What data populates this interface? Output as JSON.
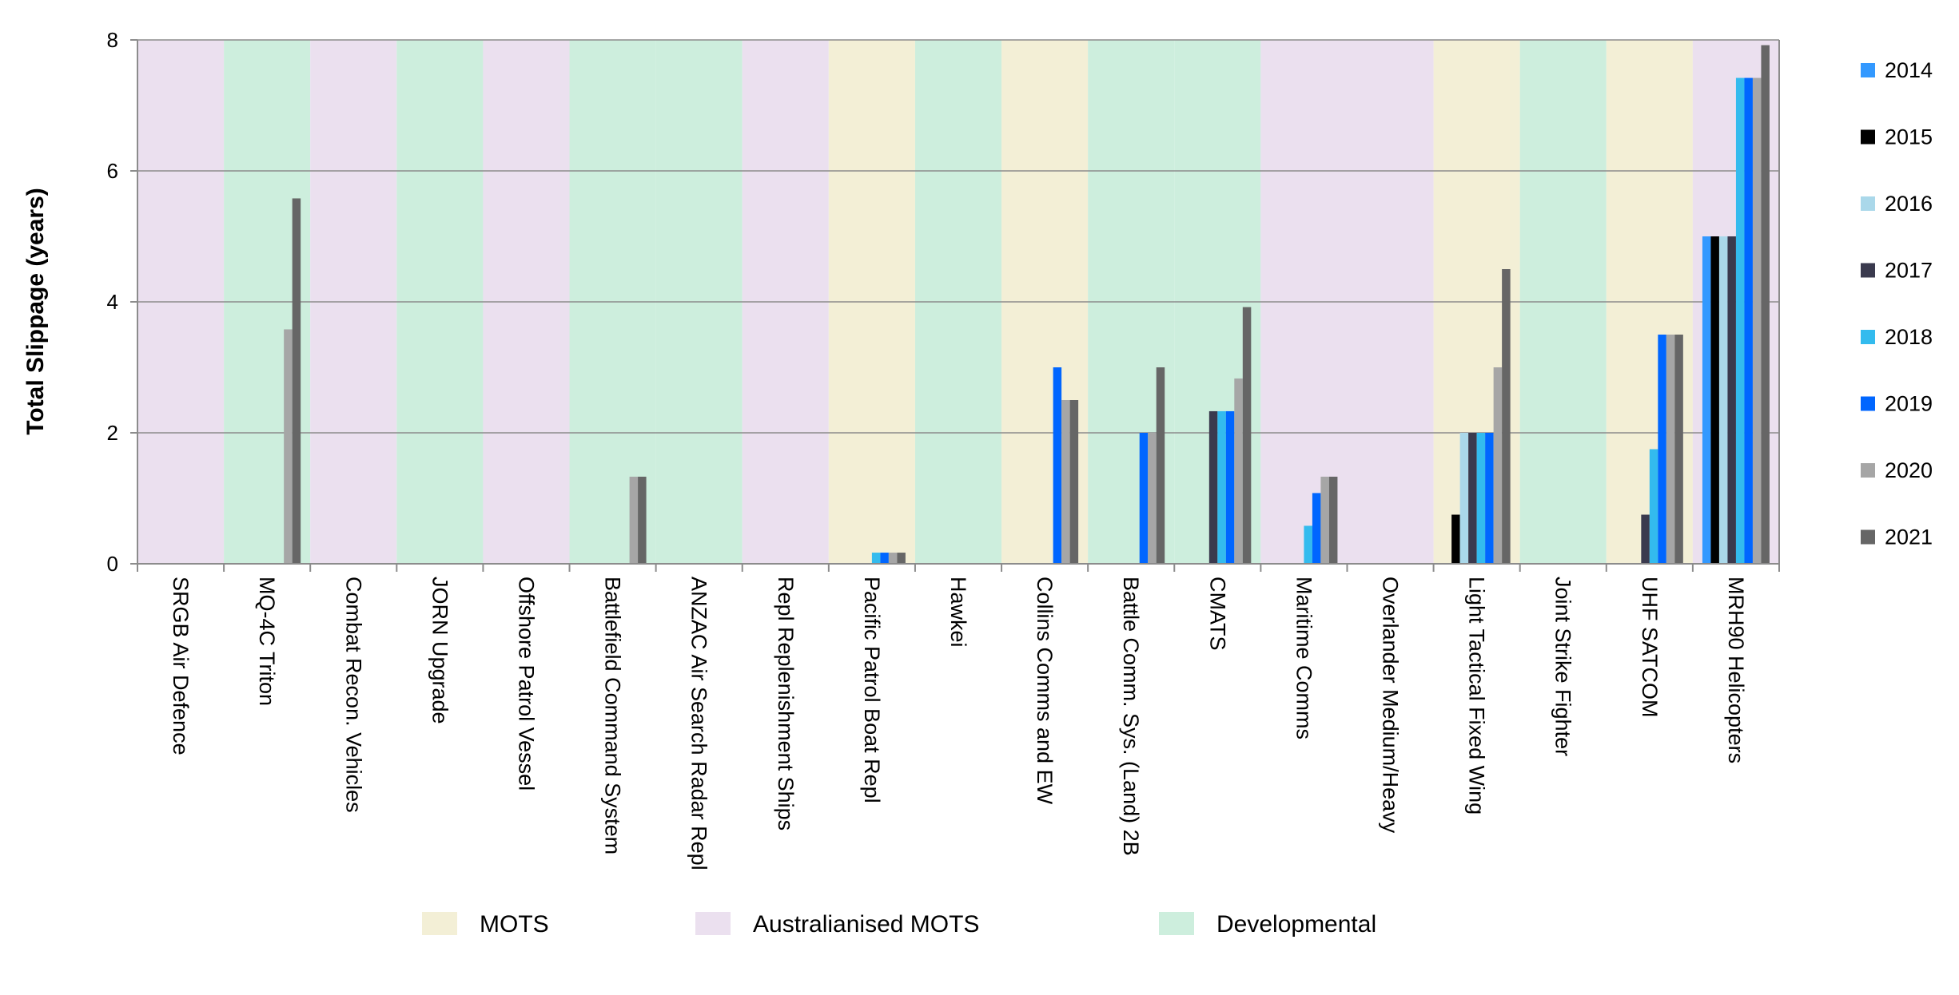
{
  "chart_data": {
    "type": "bar",
    "ylabel": "Total Slippage (years)",
    "xlabel": "",
    "ylim": [
      0,
      8
    ],
    "yticks": [
      0,
      2,
      4,
      6,
      8
    ],
    "grid": "horizontal",
    "legend_position": "right",
    "categories": [
      "SRGB Air Defence",
      "MQ-4C Triton",
      "Combat Recon. Vehicles",
      "JORN Upgrade",
      "Offshore Patrol Vessel",
      "Battlefield Command System",
      "ANZAC Air Search Radar Repl",
      "Repl Replenishment Ships",
      "Pacific Patrol Boat Repl",
      "Hawkei",
      "Collins Comms and EW",
      "Battle Comm. Sys. (Land) 2B",
      "CMATS",
      "Maritime Comms",
      "Overlander Medium/Heavy",
      "Light Tactical Fixed Wing",
      "Joint Strike Fighter",
      "UHF SATCOM",
      "MRH90 Helicopters"
    ],
    "category_type": [
      "Australianised MOTS",
      "Developmental",
      "Australianised MOTS",
      "Developmental",
      "Australianised MOTS",
      "Developmental",
      "Developmental",
      "Australianised MOTS",
      "MOTS",
      "Developmental",
      "MOTS",
      "Developmental",
      "Developmental",
      "Australianised MOTS",
      "Australianised MOTS",
      "MOTS",
      "Developmental",
      "MOTS",
      "Australianised MOTS"
    ],
    "series": [
      {
        "name": "2014",
        "color": "#3399ff",
        "values": [
          null,
          null,
          null,
          null,
          null,
          null,
          null,
          null,
          null,
          null,
          null,
          null,
          null,
          null,
          null,
          null,
          null,
          null,
          5.0
        ]
      },
      {
        "name": "2015",
        "color": "#000000",
        "values": [
          null,
          null,
          null,
          null,
          null,
          null,
          null,
          null,
          null,
          null,
          null,
          null,
          null,
          null,
          null,
          0.75,
          null,
          null,
          5.0
        ]
      },
      {
        "name": "2016",
        "color": "#aad8ea",
        "values": [
          null,
          null,
          null,
          null,
          null,
          null,
          null,
          null,
          null,
          null,
          null,
          null,
          null,
          null,
          null,
          2.0,
          null,
          null,
          5.0
        ]
      },
      {
        "name": "2017",
        "color": "#3a3a4e",
        "values": [
          null,
          null,
          null,
          null,
          null,
          null,
          null,
          null,
          null,
          null,
          null,
          null,
          2.33,
          null,
          null,
          2.0,
          null,
          0.75,
          5.0
        ]
      },
      {
        "name": "2018",
        "color": "#33bbee",
        "values": [
          null,
          null,
          null,
          null,
          null,
          null,
          null,
          null,
          0.17,
          null,
          null,
          null,
          2.33,
          0.58,
          null,
          2.0,
          null,
          1.75,
          7.42
        ]
      },
      {
        "name": "2019",
        "color": "#0066ff",
        "values": [
          null,
          null,
          null,
          null,
          null,
          null,
          null,
          null,
          0.17,
          null,
          3.0,
          2.0,
          2.33,
          1.08,
          null,
          2.0,
          null,
          3.5,
          7.42
        ]
      },
      {
        "name": "2020",
        "color": "#a6a6a6",
        "values": [
          null,
          3.58,
          null,
          null,
          null,
          1.33,
          null,
          null,
          0.17,
          null,
          2.5,
          2.0,
          2.83,
          1.33,
          null,
          3.0,
          null,
          3.5,
          7.42
        ]
      },
      {
        "name": "2021",
        "color": "#666666",
        "values": [
          null,
          5.58,
          null,
          null,
          null,
          1.33,
          null,
          null,
          0.17,
          null,
          2.5,
          3.0,
          3.92,
          1.33,
          null,
          4.5,
          null,
          3.5,
          7.92
        ]
      }
    ],
    "type_legend": [
      {
        "label": "MOTS",
        "color": "#f3efd6"
      },
      {
        "label": "Australianised MOTS",
        "color": "#ebe0ef"
      },
      {
        "label": "Developmental",
        "color": "#cdeedd"
      }
    ],
    "colors": {
      "grid": "#8c8c8c",
      "axis": "#8c8c8c"
    }
  }
}
